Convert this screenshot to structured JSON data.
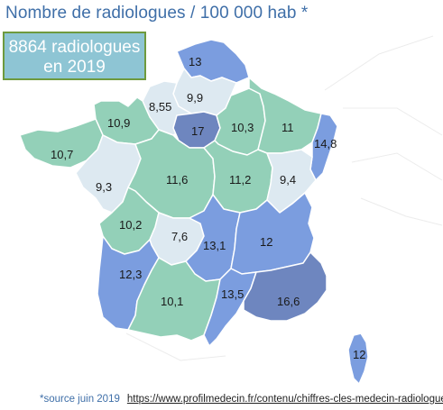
{
  "title": "Nombre de radiologues / 100 000 hab *",
  "callout": {
    "line1": "8864 radiologues",
    "line2": "en 2019"
  },
  "colors": {
    "low": "#dde9f1",
    "mid": "#93d0b8",
    "high": "#7b9ddf",
    "very_high": "#6e86bf",
    "callout_bg": "#8ec5d4",
    "callout_border": "#6e9a3e",
    "title": "#3f6fa8"
  },
  "regions": [
    {
      "id": "nord",
      "value": "13",
      "level": "high"
    },
    {
      "id": "normandie-ouest",
      "value": "8,55",
      "level": "low"
    },
    {
      "id": "picardie",
      "value": "9,9",
      "level": "low"
    },
    {
      "id": "ile-de-france",
      "value": "17",
      "level": "very_high"
    },
    {
      "id": "champagne",
      "value": "10,3",
      "level": "mid"
    },
    {
      "id": "lorraine",
      "value": "11",
      "level": "mid"
    },
    {
      "id": "alsace",
      "value": "14,8",
      "level": "high"
    },
    {
      "id": "normandie-est",
      "value": "10,9",
      "level": "mid"
    },
    {
      "id": "bretagne",
      "value": "10,7",
      "level": "mid"
    },
    {
      "id": "pays-de-la-loire",
      "value": "9,3",
      "level": "low"
    },
    {
      "id": "centre",
      "value": "11,6",
      "level": "mid"
    },
    {
      "id": "bourgogne",
      "value": "11,2",
      "level": "mid"
    },
    {
      "id": "franche-comte",
      "value": "9,4",
      "level": "low"
    },
    {
      "id": "poitou-charentes",
      "value": "10,2",
      "level": "mid"
    },
    {
      "id": "limousin",
      "value": "7,6",
      "level": "low"
    },
    {
      "id": "auvergne",
      "value": "13,1",
      "level": "high"
    },
    {
      "id": "rhone-alpes",
      "value": "12",
      "level": "high"
    },
    {
      "id": "aquitaine",
      "value": "12,3",
      "level": "high"
    },
    {
      "id": "midi-pyrenees",
      "value": "10,1",
      "level": "mid"
    },
    {
      "id": "languedoc",
      "value": "13,5",
      "level": "high"
    },
    {
      "id": "paca",
      "value": "16,6",
      "level": "very_high"
    },
    {
      "id": "corse",
      "value": "12",
      "level": "high"
    }
  ],
  "footer": {
    "note": "*source juin 2019",
    "link": "https://www.profilmedecin.fr/contenu/chiffres-cles-medecin-radiologue/"
  }
}
